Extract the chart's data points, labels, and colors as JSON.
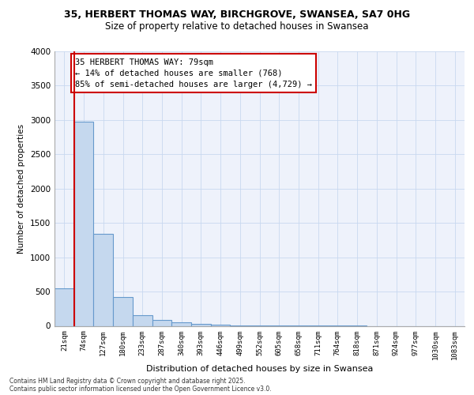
{
  "title_line1": "35, HERBERT THOMAS WAY, BIRCHGROVE, SWANSEA, SA7 0HG",
  "title_line2": "Size of property relative to detached houses in Swansea",
  "xlabel": "Distribution of detached houses by size in Swansea",
  "ylabel": "Number of detached properties",
  "background_color": "#eef2fb",
  "bar_color": "#c5d8ee",
  "bar_edge_color": "#6699cc",
  "categories": [
    "21sqm",
    "74sqm",
    "127sqm",
    "180sqm",
    "233sqm",
    "287sqm",
    "340sqm",
    "393sqm",
    "446sqm",
    "499sqm",
    "552sqm",
    "605sqm",
    "658sqm",
    "711sqm",
    "764sqm",
    "818sqm",
    "871sqm",
    "924sqm",
    "977sqm",
    "1030sqm",
    "1083sqm"
  ],
  "values": [
    550,
    2980,
    1340,
    420,
    155,
    90,
    55,
    30,
    20,
    10,
    5,
    3,
    2,
    1,
    1,
    1,
    0,
    0,
    0,
    0,
    0
  ],
  "ylim": [
    0,
    4000
  ],
  "yticks": [
    0,
    500,
    1000,
    1500,
    2000,
    2500,
    3000,
    3500,
    4000
  ],
  "annotation_line1": "35 HERBERT THOMAS WAY: 79sqm",
  "annotation_line2": "← 14% of detached houses are smaller (768)",
  "annotation_line3": "85% of semi-detached houses are larger (4,729) →",
  "footer_line1": "Contains HM Land Registry data © Crown copyright and database right 2025.",
  "footer_line2": "Contains public sector information licensed under the Open Government Licence v3.0.",
  "grid_color": "#c8d8f0",
  "red_line_x": 0.5
}
